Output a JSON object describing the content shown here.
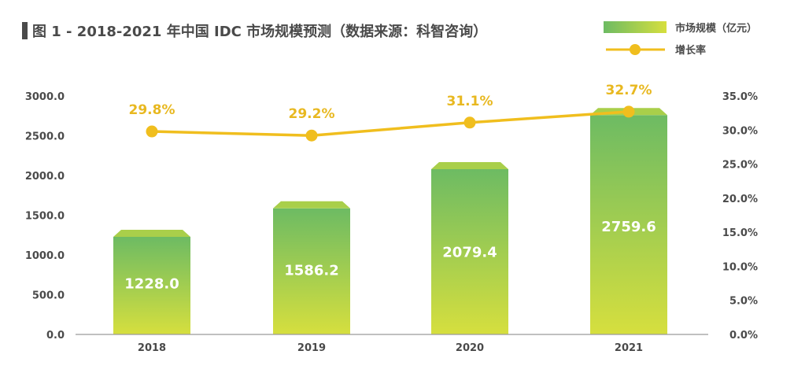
{
  "colors": {
    "bar_top": "#6dbb63",
    "bar_bottom": "#d6df3e",
    "bar_cap": "#a9cf4a",
    "line": "#f0be1e",
    "text": "#4a4a4a",
    "axis": "#9a9a9a"
  },
  "chart_data": {
    "type": "bar",
    "title": "图 1 - 2018-2021 年中国 IDC 市场规模预测（数据来源：科智咨询）",
    "categories": [
      "2018",
      "2019",
      "2020",
      "2021"
    ],
    "series": [
      {
        "name": "市场规模（亿元）",
        "type": "bar",
        "axis": "left",
        "values": [
          1228.0,
          1586.2,
          2079.4,
          2759.6
        ],
        "labels": [
          "1228.0",
          "1586.2",
          "2079.4",
          "2759.6"
        ]
      },
      {
        "name": "增长率",
        "type": "line",
        "axis": "right",
        "values": [
          29.8,
          29.2,
          31.1,
          32.7
        ],
        "labels": [
          "29.8%",
          "29.2%",
          "31.1%",
          "32.7%"
        ]
      }
    ],
    "y_left": {
      "min": 0,
      "max": 3000,
      "ticks": [
        "0.0",
        "500.0",
        "1000.0",
        "1500.0",
        "2000.0",
        "2500.0",
        "3000.0"
      ]
    },
    "y_right": {
      "min": 0,
      "max": 35,
      "ticks": [
        "0.0%",
        "5.0%",
        "10.0%",
        "15.0%",
        "20.0%",
        "25.0%",
        "30.0%",
        "35.0%"
      ]
    },
    "legend_position": "top-right",
    "grid": false
  }
}
